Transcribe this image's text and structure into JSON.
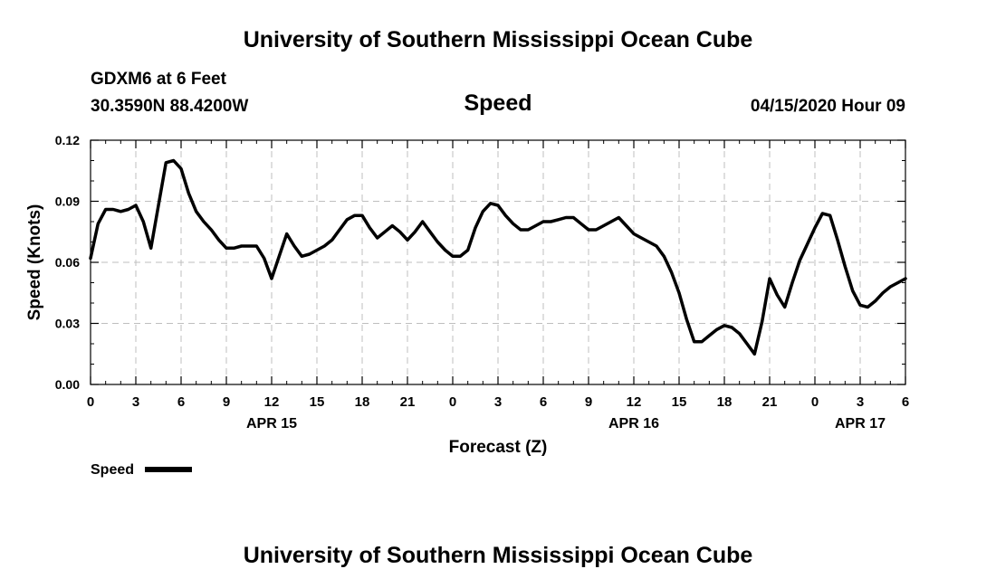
{
  "header": {
    "title": "University of Southern Mississippi Ocean Cube",
    "station": "GDXM6 at 6 Feet",
    "coordinates": "30.3590N 88.4200W",
    "timestamp": "04/15/2020 Hour 09"
  },
  "footer": {
    "title": "University of Southern Mississippi Ocean Cube"
  },
  "chart_data": {
    "type": "line",
    "title": "Speed",
    "xlabel": "Forecast (Z)",
    "ylabel": "Speed (Knots)",
    "xlim": [
      0,
      54
    ],
    "ylim": [
      0,
      0.12
    ],
    "grid": true,
    "line_color": "#000000",
    "grid_color": "#bfbfbf",
    "x_tick_labels": [
      "0",
      "3",
      "6",
      "9",
      "12",
      "15",
      "18",
      "21",
      "0",
      "3",
      "6",
      "9",
      "12",
      "15",
      "18",
      "21",
      "0",
      "3",
      "6"
    ],
    "y_tick_labels": [
      "0.00",
      "0.03",
      "0.06",
      "0.09",
      "0.12"
    ],
    "date_labels": [
      {
        "label": "APR 15",
        "x": 12
      },
      {
        "label": "APR 16",
        "x": 36
      },
      {
        "label": "APR 17",
        "x": 51
      }
    ],
    "legend": {
      "label": "Speed",
      "position": "bottom-left"
    },
    "series": [
      {
        "name": "Speed",
        "x": [
          0,
          0.5,
          1,
          1.5,
          2,
          2.5,
          3,
          3.5,
          4,
          4.5,
          5,
          5.5,
          6,
          6.5,
          7,
          7.5,
          8,
          8.5,
          9,
          9.5,
          10,
          10.5,
          11,
          11.5,
          12,
          12.5,
          13,
          13.5,
          14,
          14.5,
          15,
          15.5,
          16,
          16.5,
          17,
          17.5,
          18,
          18.5,
          19,
          19.5,
          20,
          20.5,
          21,
          21.5,
          22,
          22.5,
          23,
          23.5,
          24,
          24.5,
          25,
          25.5,
          26,
          26.5,
          27,
          27.5,
          28,
          28.5,
          29,
          29.5,
          30,
          30.5,
          31,
          31.5,
          32,
          32.5,
          33,
          33.5,
          34,
          34.5,
          35,
          35.5,
          36,
          36.5,
          37,
          37.5,
          38,
          38.5,
          39,
          39.5,
          40,
          40.5,
          41,
          41.5,
          42,
          42.5,
          43,
          43.5,
          44,
          44.5,
          45,
          45.5,
          46,
          46.5,
          47,
          47.5,
          48,
          48.5,
          49,
          49.5,
          50,
          50.5,
          51,
          51.5,
          52,
          52.5,
          53,
          53.5,
          54
        ],
        "values": [
          0.062,
          0.079,
          0.086,
          0.086,
          0.085,
          0.086,
          0.088,
          0.08,
          0.067,
          0.088,
          0.109,
          0.11,
          0.106,
          0.094,
          0.085,
          0.08,
          0.076,
          0.071,
          0.067,
          0.067,
          0.068,
          0.068,
          0.068,
          0.062,
          0.052,
          0.063,
          0.074,
          0.068,
          0.063,
          0.064,
          0.066,
          0.068,
          0.071,
          0.076,
          0.081,
          0.083,
          0.083,
          0.077,
          0.072,
          0.075,
          0.078,
          0.075,
          0.071,
          0.075,
          0.08,
          0.075,
          0.07,
          0.066,
          0.063,
          0.063,
          0.066,
          0.077,
          0.085,
          0.089,
          0.088,
          0.083,
          0.079,
          0.076,
          0.076,
          0.078,
          0.08,
          0.08,
          0.081,
          0.082,
          0.082,
          0.079,
          0.076,
          0.076,
          0.078,
          0.08,
          0.082,
          0.078,
          0.074,
          0.072,
          0.07,
          0.068,
          0.063,
          0.055,
          0.045,
          0.032,
          0.021,
          0.021,
          0.024,
          0.027,
          0.029,
          0.028,
          0.025,
          0.02,
          0.015,
          0.031,
          0.052,
          0.044,
          0.038,
          0.05,
          0.061,
          0.069,
          0.077,
          0.084,
          0.083,
          0.071,
          0.058,
          0.046,
          0.039,
          0.038,
          0.041,
          0.045,
          0.048,
          0.05,
          0.052
        ]
      }
    ]
  }
}
